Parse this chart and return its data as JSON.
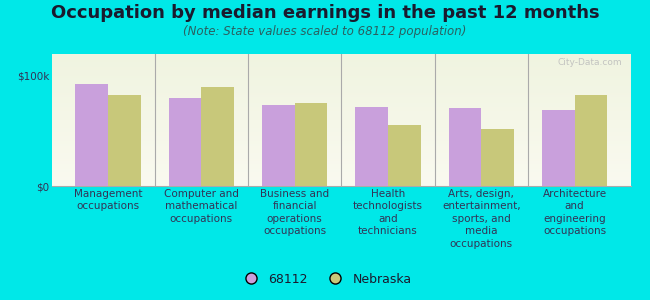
{
  "title": "Occupation by median earnings in the past 12 months",
  "subtitle": "(Note: State values scaled to 68112 population)",
  "categories": [
    "Management\noccupations",
    "Computer and\nmathematical\noccupations",
    "Business and\nfinancial\noperations\noccupations",
    "Health\ntechnologists\nand\ntechnicians",
    "Arts, design,\nentertainment,\nsports, and\nmedia\noccupations",
    "Architecture\nand\nengineering\noccupations"
  ],
  "values_68112": [
    93000,
    80000,
    74000,
    72000,
    71000,
    69000
  ],
  "values_nebraska": [
    83000,
    90000,
    75000,
    55000,
    52000,
    83000
  ],
  "color_68112": "#c9a0dc",
  "color_nebraska": "#c8c87a",
  "bar_width": 0.35,
  "ylim": [
    0,
    120000
  ],
  "yticks": [
    0,
    100000
  ],
  "ytick_labels": [
    "$0",
    "$100k"
  ],
  "background_color": "#00e8e8",
  "plot_bg_top": "#f0f4e0",
  "plot_bg_bottom": "#fafaf0",
  "legend_label_68112": "68112",
  "legend_label_nebraska": "Nebraska",
  "watermark": "City-Data.com",
  "title_fontsize": 13,
  "subtitle_fontsize": 8.5,
  "tick_fontsize": 7.5,
  "title_color": "#1a1a2e",
  "subtitle_color": "#2a6060",
  "tick_color": "#333355"
}
